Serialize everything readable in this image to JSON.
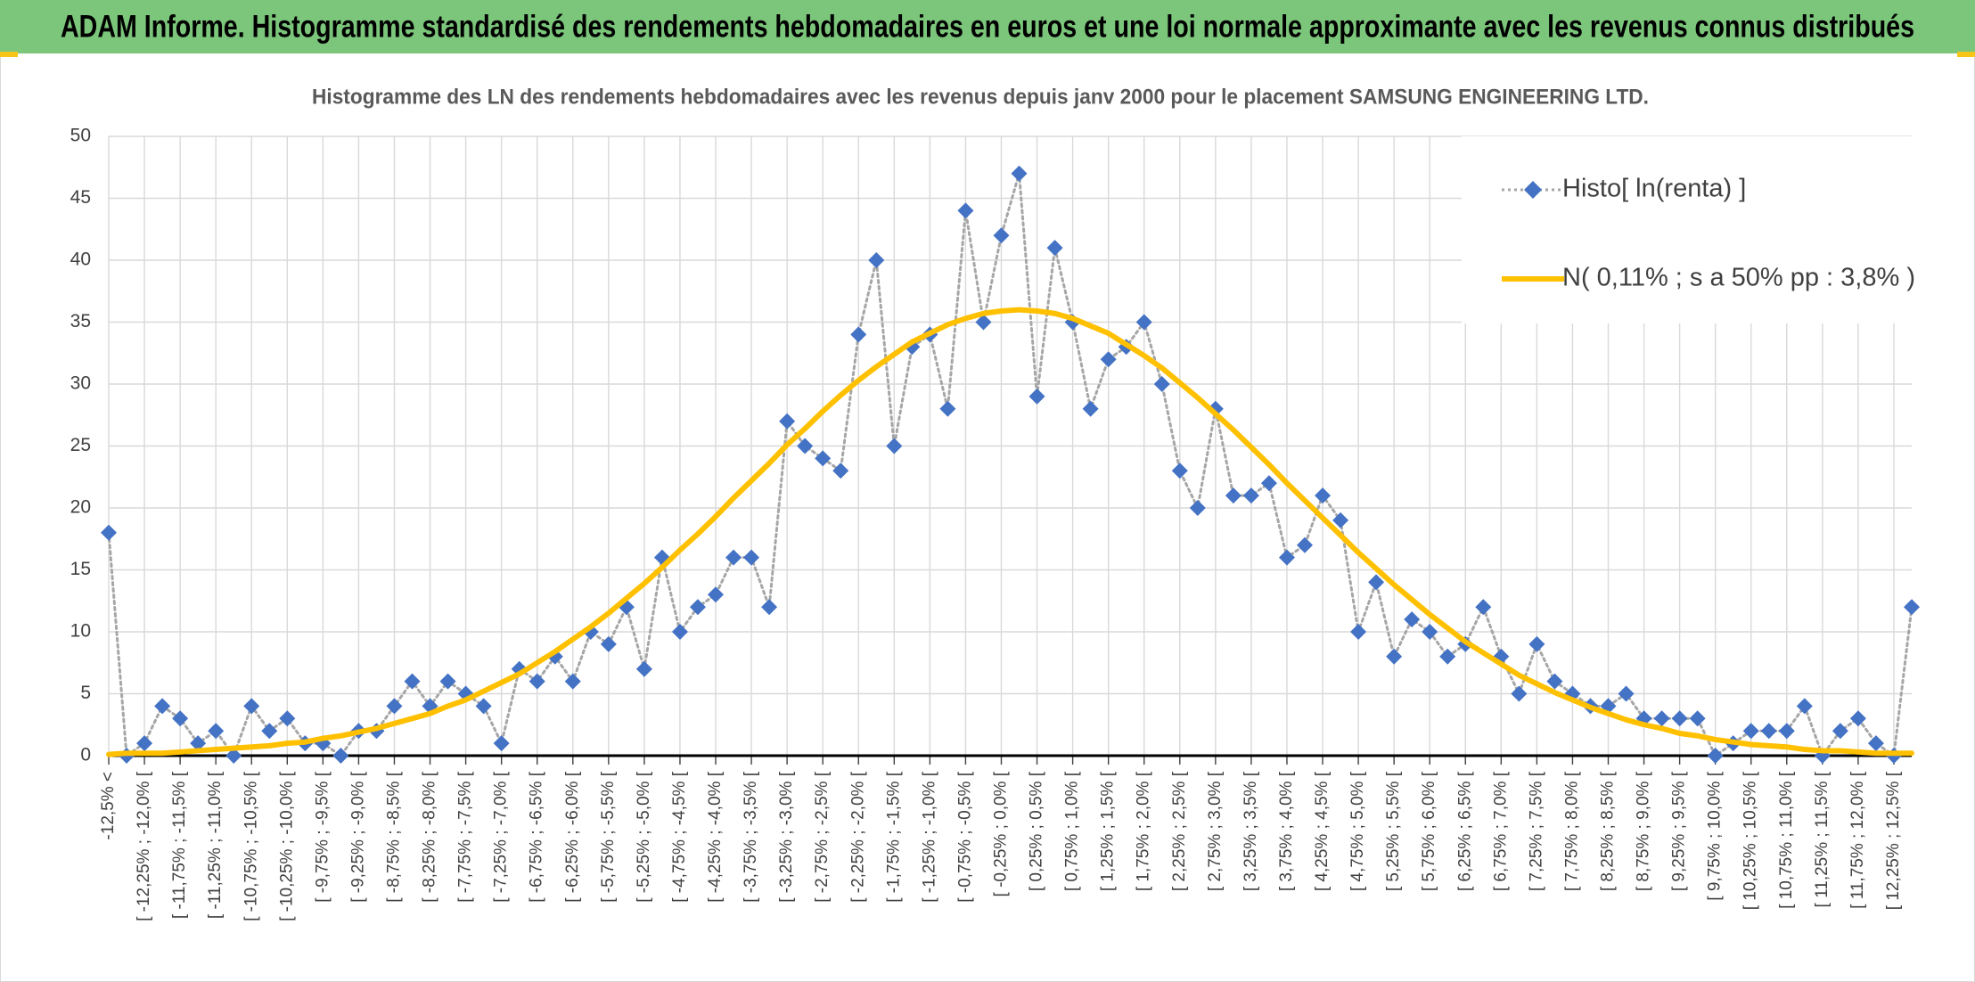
{
  "header": {
    "title": "ADAM Informe. Histogramme standardisé des rendements hebdomadaires en euros et une loi normale approximante avec les revenus connus distribués"
  },
  "chart_data": {
    "type": "line",
    "title": "Histogramme des LN des rendements hebdomadaires avec les revenus depuis janv 2000 pour le placement SAMSUNG ENGINEERING LTD.",
    "categories": [
      "-12,5% <",
      null,
      "[ -12,25% ; -12,0% [",
      null,
      "[ -11,75% ; -11,5% [",
      null,
      "[ -11,25% ; -11,0% [",
      null,
      "[ -10,75% ; -10,5% [",
      null,
      "[ -10,25% ; -10,0% [",
      null,
      "[ -9,75% ; -9,5% [",
      null,
      "[ -9,25% ; -9,0% [",
      null,
      "[ -8,75% ; -8,5% [",
      null,
      "[ -8,25% ; -8,0% [",
      null,
      "[ -7,75% ; -7,5% [",
      null,
      "[ -7,25% ; -7,0% [",
      null,
      "[ -6,75% ; -6,5% [",
      null,
      "[ -6,25% ; -6,0% [",
      null,
      "[ -5,75% ; -5,5% [",
      null,
      "[ -5,25% ; -5,0% [",
      null,
      "[ -4,75% ; -4,5% [",
      null,
      "[ -4,25% ; -4,0% [",
      null,
      "[ -3,75% ; -3,5% [",
      null,
      "[ -3,25% ; -3,0% [",
      null,
      "[ -2,75% ; -2,5% [",
      null,
      "[ -2,25% ; -2,0% [",
      null,
      "[ -1,75% ; -1,5% [",
      null,
      "[ -1,25% ; -1,0% [",
      null,
      "[ -0,75% ; -0,5% [",
      null,
      "[ -0,25% ; 0,0% [",
      null,
      "[ 0,25% ; 0,5% [",
      null,
      "[ 0,75% ; 1,0% [",
      null,
      "[ 1,25% ; 1,5% [",
      null,
      "[ 1,75% ; 2,0% [",
      null,
      "[ 2,25% ; 2,5% [",
      null,
      "[ 2,75% ; 3,0% [",
      null,
      "[ 3,25% ; 3,5% [",
      null,
      "[ 3,75% ; 4,0% [",
      null,
      "[ 4,25% ; 4,5% [",
      null,
      "[ 4,75% ; 5,0% [",
      null,
      "[ 5,25% ; 5,5% [",
      null,
      "[ 5,75% ; 6,0% [",
      null,
      "[ 6,25% ; 6,5% [",
      null,
      "[ 6,75% ; 7,0% [",
      null,
      "[ 7,25% ; 7,5% [",
      null,
      "[ 7,75% ; 8,0% [",
      null,
      "[ 8,25% ; 8,5% [",
      null,
      "[ 8,75% ; 9,0% [",
      null,
      "[ 9,25% ; 9,5% [",
      null,
      "[ 9,75% ; 10,0% [",
      null,
      "[ 10,25% ; 10,5% [",
      null,
      "[ 10,75% ; 11,0% [",
      null,
      "[ 11,25% ; 11,5% [",
      null,
      "[ 11,75% ; 12,0% [",
      null,
      "[ 12,25% ; 12,5% [",
      null
    ],
    "series": [
      {
        "name": "Histo[ ln(renta) ]",
        "color": "#4472c4",
        "line_color": "#a6a6a6",
        "line_style": "dotted",
        "marker": "diamond",
        "values": [
          18,
          0,
          1,
          4,
          3,
          1,
          2,
          0,
          4,
          2,
          3,
          1,
          1,
          0,
          2,
          2,
          4,
          6,
          4,
          6,
          5,
          4,
          1,
          7,
          6,
          8,
          6,
          10,
          9,
          12,
          7,
          16,
          10,
          12,
          13,
          16,
          16,
          12,
          27,
          25,
          24,
          23,
          34,
          40,
          25,
          33,
          34,
          28,
          44,
          35,
          42,
          47,
          29,
          41,
          35,
          28,
          32,
          33,
          35,
          30,
          23,
          20,
          28,
          21,
          21,
          22,
          16,
          17,
          21,
          19,
          10,
          14,
          8,
          11,
          10,
          8,
          9,
          12,
          8,
          5,
          9,
          6,
          5,
          4,
          4,
          5,
          3,
          3,
          3,
          3,
          0,
          1,
          2,
          2,
          2,
          4,
          0,
          2,
          3,
          1,
          0,
          12
        ]
      },
      {
        "name": "N( 0,11% ; s a 50% pp : 3,8% )",
        "color": "#ffc000",
        "line_style": "solid",
        "marker": "none",
        "values": [
          0.1,
          0.2,
          0.2,
          0.2,
          0.3,
          0.4,
          0.5,
          0.6,
          0.7,
          0.8,
          1.0,
          1.1,
          1.4,
          1.6,
          1.9,
          2.2,
          2.6,
          3.0,
          3.4,
          4.0,
          4.5,
          5.2,
          5.9,
          6.6,
          7.5,
          8.4,
          9.4,
          10.4,
          11.5,
          12.7,
          13.9,
          15.2,
          16.6,
          17.9,
          19.3,
          20.8,
          22.2,
          23.6,
          25.1,
          26.4,
          27.8,
          29.1,
          30.3,
          31.4,
          32.4,
          33.4,
          34.1,
          34.8,
          35.3,
          35.7,
          35.9,
          36.0,
          35.9,
          35.7,
          35.3,
          34.7,
          34.1,
          33.2,
          32.3,
          31.3,
          30.1,
          28.9,
          27.6,
          26.3,
          24.9,
          23.5,
          22.0,
          20.6,
          19.2,
          17.8,
          16.4,
          15.1,
          13.8,
          12.6,
          11.4,
          10.3,
          9.2,
          8.3,
          7.4,
          6.5,
          5.8,
          5.1,
          4.5,
          3.9,
          3.4,
          2.9,
          2.5,
          2.2,
          1.8,
          1.6,
          1.3,
          1.1,
          0.9,
          0.8,
          0.7,
          0.5,
          0.4,
          0.4,
          0.3,
          0.2,
          0.2,
          0.2
        ]
      }
    ],
    "ylim": [
      0,
      50
    ],
    "yticks": [
      0,
      5,
      10,
      15,
      20,
      25,
      30,
      35,
      40,
      45,
      50
    ],
    "grid": true,
    "legend": "upper right"
  }
}
